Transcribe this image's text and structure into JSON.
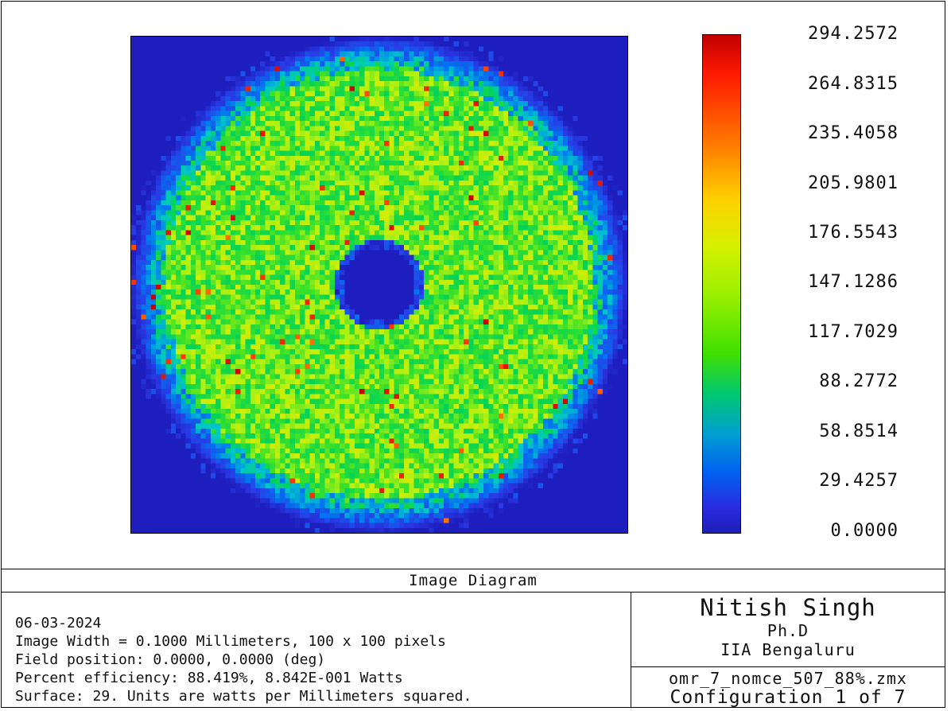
{
  "chart_data": {
    "type": "heatmap",
    "title": "Image Diagram",
    "grid": false,
    "pixels": [
      100,
      100
    ],
    "colorbar": {
      "min": 0.0,
      "max": 294.2572,
      "placement": "right",
      "ticks": [
        "294.2572",
        "264.8315",
        "235.4058",
        "205.9801",
        "176.5543",
        "147.1286",
        "117.7029",
        "88.2772",
        "58.8514",
        "29.4257",
        "0.0000"
      ]
    },
    "description_values": {
      "outer_ring_radius_fraction": 0.46,
      "central_obscuration_radius_fraction": 0.075,
      "typical_level": 160
    }
  },
  "footer": {
    "title": "Image Diagram",
    "date": "06-03-2024",
    "lines": [
      "Image Width = 0.1000 Millimeters, 100 x 100 pixels",
      "Field position: 0.0000, 0.0000 (deg)",
      "Percent efficiency: 88.419%, 8.842E-001 Watts",
      "Surface: 29. Units are watts per Millimeters squared."
    ],
    "author": "Nitish Singh",
    "degree": "Ph.D",
    "institution": "IIA Bengaluru",
    "file": "omr_7_nomce_507_88%.zmx",
    "configuration": "Configuration 1 of 7"
  }
}
